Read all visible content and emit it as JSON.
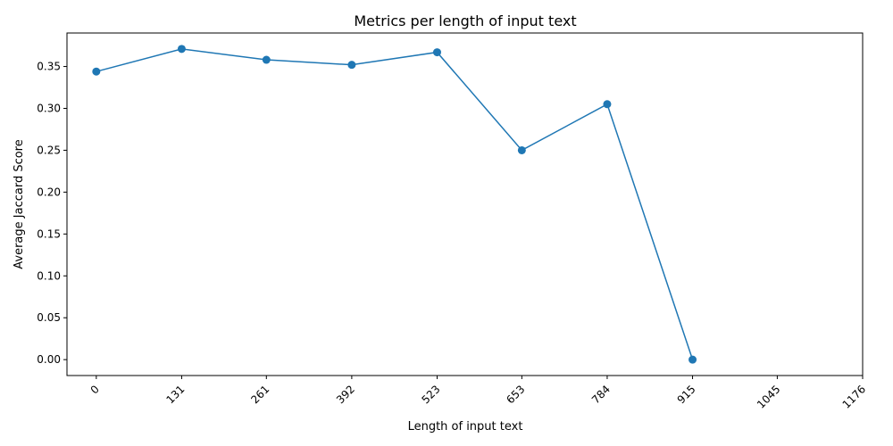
{
  "chart_data": {
    "type": "line",
    "title": "Metrics per length of input text",
    "xlabel": "Length of input text",
    "ylabel": "Average Jaccard Score",
    "x_ticks": [
      0,
      131,
      261,
      392,
      523,
      653,
      784,
      915,
      1045,
      1176
    ],
    "x_tick_labels": [
      "0",
      "131",
      "261",
      "392",
      "523",
      "653",
      "784",
      "915",
      "1045",
      "1176"
    ],
    "y_ticks": [
      0.0,
      0.05,
      0.1,
      0.15,
      0.2,
      0.25,
      0.3,
      0.35
    ],
    "y_tick_labels": [
      "0.00",
      "0.05",
      "0.10",
      "0.15",
      "0.20",
      "0.25",
      "0.30",
      "0.35"
    ],
    "xlim": [
      -45,
      1176
    ],
    "ylim": [
      -0.019,
      0.39
    ],
    "grid": false,
    "x_tick_rotation": 45,
    "series": [
      {
        "color": "#1f77b4",
        "x": [
          0,
          131,
          261,
          392,
          523,
          653,
          784,
          915
        ],
        "y": [
          0.344,
          0.371,
          0.358,
          0.352,
          0.367,
          0.25,
          0.305,
          0.0
        ]
      }
    ]
  }
}
